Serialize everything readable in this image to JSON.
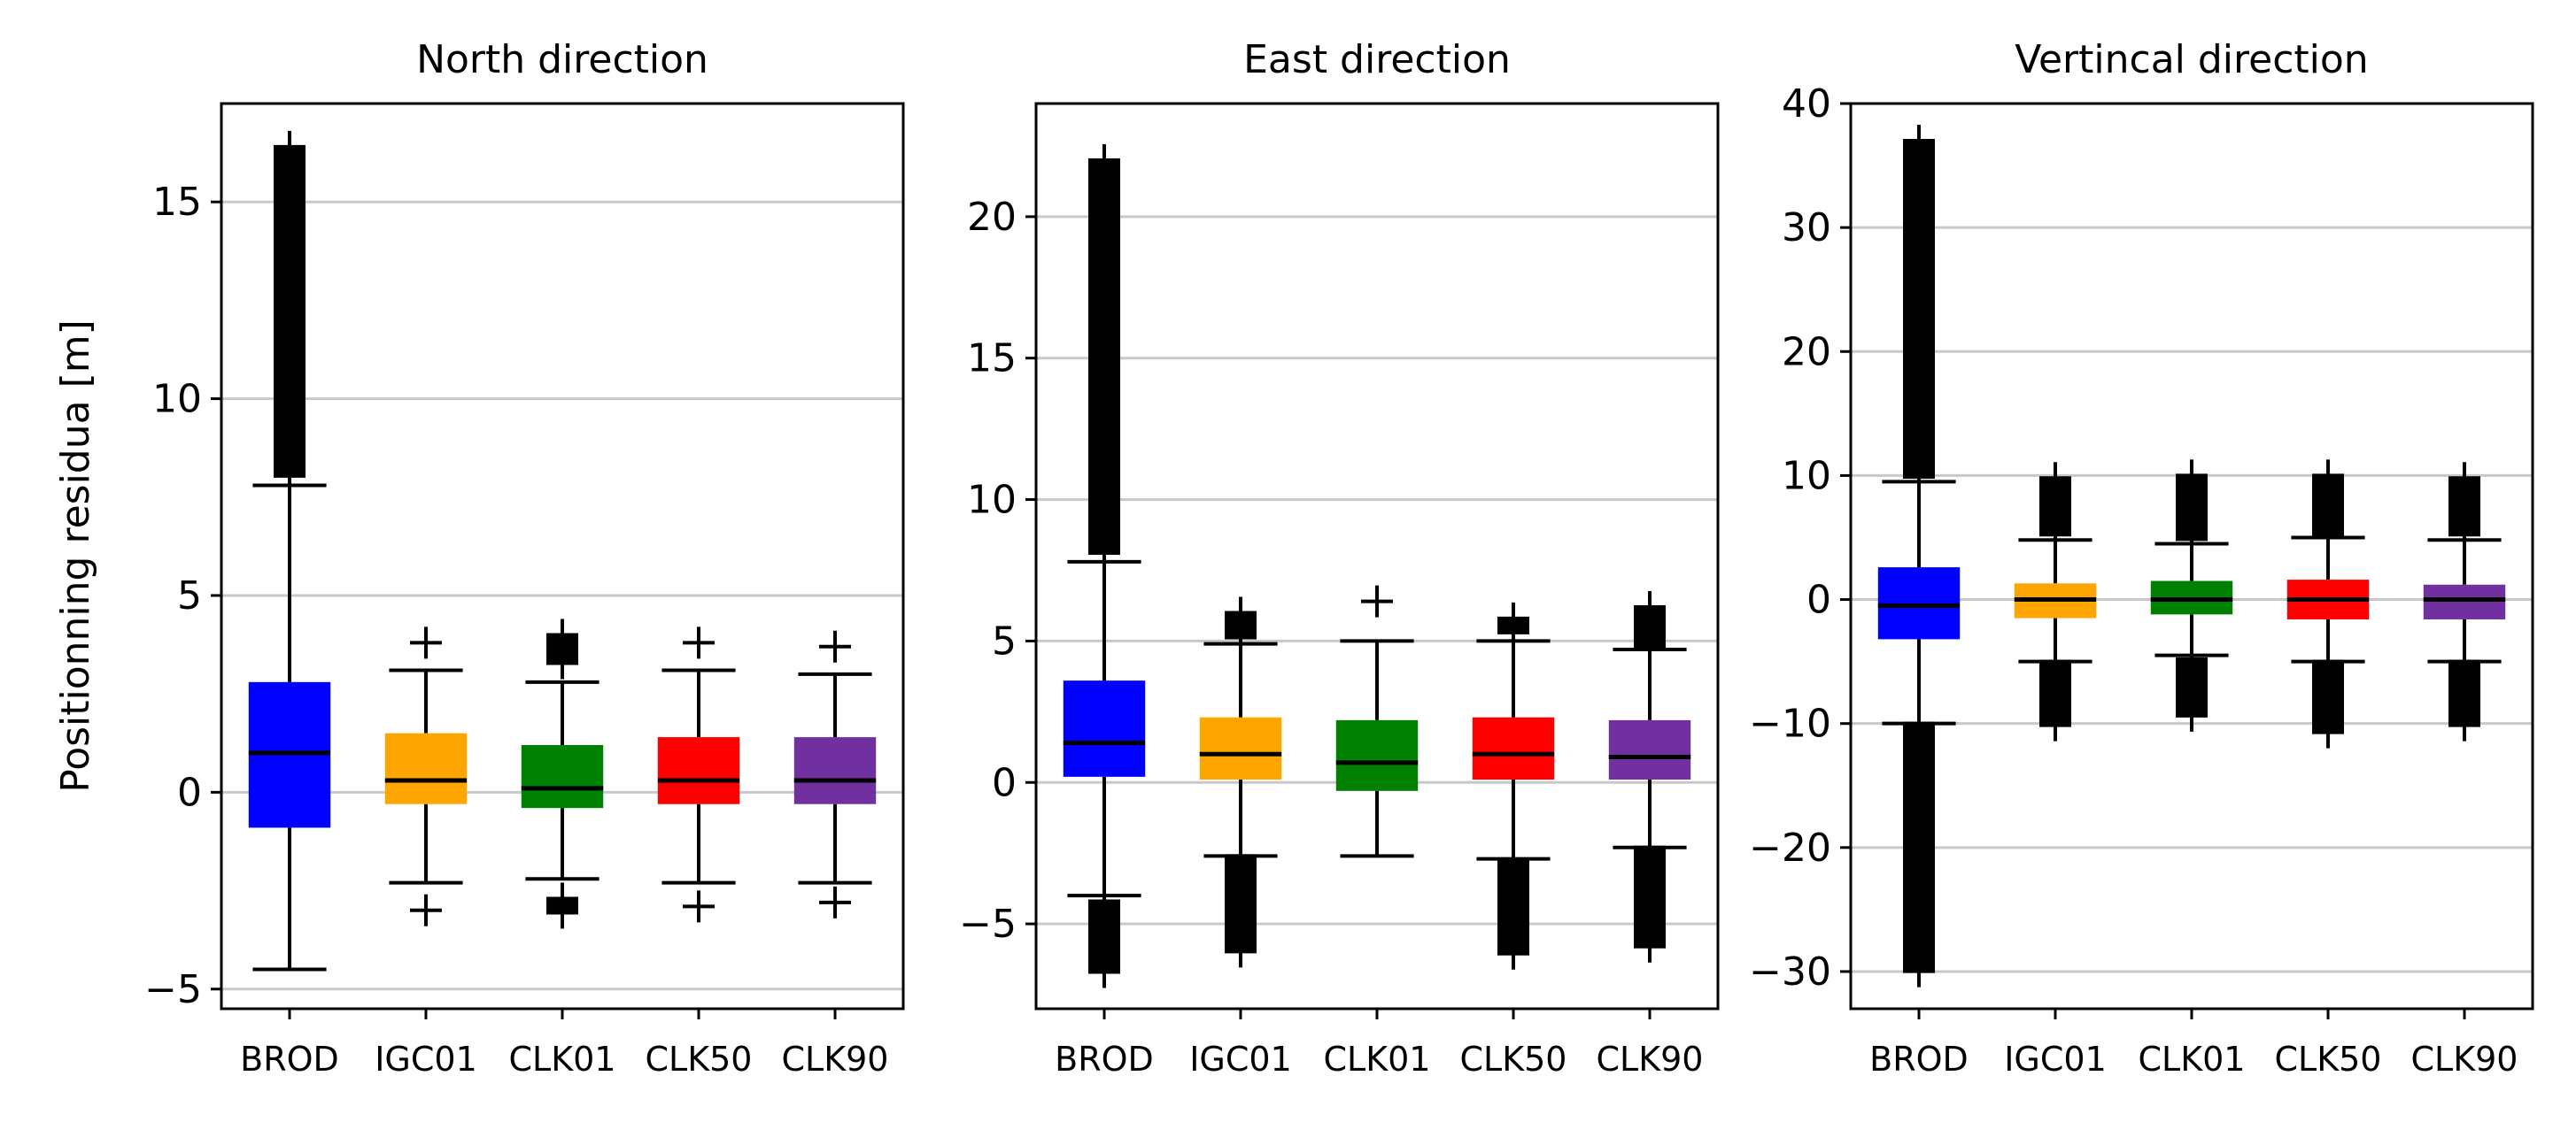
{
  "chart_data": [
    {
      "type": "box",
      "title": "North direction",
      "ylabel": "Positionning residua [m]",
      "xlabel": "",
      "ylim": [
        -5.5,
        17.5
      ],
      "yticks": [
        -5,
        0,
        5,
        10,
        15
      ],
      "grid": "horizontal",
      "categories": [
        "BROD",
        "IGC01",
        "CLK01",
        "CLK50",
        "CLK90"
      ],
      "boxes": [
        {
          "name": "BROD",
          "color": "#0000ff",
          "q1": -0.9,
          "median": 1.0,
          "q3": 2.8,
          "whisker_low": -4.5,
          "whisker_high": 7.8,
          "fliers_high": [
            8.0,
            16.4
          ],
          "fliers_low": []
        },
        {
          "name": "IGC01",
          "color": "#ffa500",
          "q1": -0.3,
          "median": 0.3,
          "q3": 1.5,
          "whisker_low": -2.3,
          "whisker_high": 3.1,
          "fliers_high": [
            3.8,
            3.8
          ],
          "fliers_low": [
            -3.0,
            -3.0
          ]
        },
        {
          "name": "CLK01",
          "color": "#008000",
          "q1": -0.4,
          "median": 0.1,
          "q3": 1.2,
          "whisker_low": -2.2,
          "whisker_high": 2.8,
          "fliers_high": [
            3.2,
            4.0
          ],
          "fliers_low": [
            -3.1,
            -2.7
          ]
        },
        {
          "name": "CLK50",
          "color": "#ff0000",
          "q1": -0.3,
          "median": 0.3,
          "q3": 1.4,
          "whisker_low": -2.3,
          "whisker_high": 3.1,
          "fliers_high": [
            3.8,
            3.8
          ],
          "fliers_low": [
            -2.9,
            -2.9
          ]
        },
        {
          "name": "CLK90",
          "color": "#7030a0",
          "q1": -0.3,
          "median": 0.3,
          "q3": 1.4,
          "whisker_low": -2.3,
          "whisker_high": 3.0,
          "fliers_high": [
            3.7,
            3.7
          ],
          "fliers_low": [
            -2.8,
            -2.8
          ]
        }
      ]
    },
    {
      "type": "box",
      "title": "East direction",
      "ylabel": "",
      "xlabel": "",
      "ylim": [
        -8,
        24
      ],
      "yticks": [
        -5,
        0,
        5,
        10,
        15,
        20
      ],
      "grid": "horizontal",
      "categories": [
        "BROD",
        "IGC01",
        "CLK01",
        "CLK50",
        "CLK90"
      ],
      "boxes": [
        {
          "name": "BROD",
          "color": "#0000ff",
          "q1": 0.2,
          "median": 1.4,
          "q3": 3.6,
          "whisker_low": -4.0,
          "whisker_high": 7.8,
          "fliers_high": [
            8.0,
            22.0
          ],
          "fliers_low": [
            -6.8,
            -4.2
          ]
        },
        {
          "name": "IGC01",
          "color": "#ffa500",
          "q1": 0.1,
          "median": 1.0,
          "q3": 2.3,
          "whisker_low": -2.6,
          "whisker_high": 4.9,
          "fliers_high": [
            5.0,
            6.0
          ],
          "fliers_low": [
            -6.0,
            -2.6
          ]
        },
        {
          "name": "CLK01",
          "color": "#008000",
          "q1": -0.3,
          "median": 0.7,
          "q3": 2.2,
          "whisker_low": -2.6,
          "whisker_high": 5.0,
          "fliers_high": [
            6.4,
            6.4
          ],
          "fliers_low": []
        },
        {
          "name": "CLK50",
          "color": "#ff0000",
          "q1": 0.1,
          "median": 1.0,
          "q3": 2.3,
          "whisker_low": -2.7,
          "whisker_high": 5.0,
          "fliers_high": [
            5.2,
            5.8
          ],
          "fliers_low": [
            -6.1,
            -2.8
          ]
        },
        {
          "name": "CLK90",
          "color": "#7030a0",
          "q1": 0.1,
          "median": 0.9,
          "q3": 2.2,
          "whisker_low": -2.3,
          "whisker_high": 4.7,
          "fliers_high": [
            4.8,
            6.2
          ],
          "fliers_low": [
            -5.9,
            -2.3
          ]
        }
      ]
    },
    {
      "type": "box",
      "title": "Vertincal direction",
      "ylabel": "",
      "xlabel": "",
      "ylim": [
        -33,
        40
      ],
      "yticks": [
        -30,
        -20,
        -10,
        0,
        10,
        20,
        30,
        40
      ],
      "grid": "horizontal",
      "categories": [
        "BROD",
        "IGC01",
        "CLK01",
        "CLK50",
        "CLK90"
      ],
      "boxes": [
        {
          "name": "BROD",
          "color": "#0000ff",
          "q1": -3.2,
          "median": -0.5,
          "q3": 2.6,
          "whisker_low": -10.0,
          "whisker_high": 9.5,
          "fliers_high": [
            9.8,
            37.0
          ],
          "fliers_low": [
            -30.0,
            -10.0
          ]
        },
        {
          "name": "IGC01",
          "color": "#ffa500",
          "q1": -1.5,
          "median": 0.0,
          "q3": 1.3,
          "whisker_low": -5.0,
          "whisker_high": 4.8,
          "fliers_high": [
            5.0,
            9.8
          ],
          "fliers_low": [
            -10.4,
            -5.0
          ]
        },
        {
          "name": "CLK01",
          "color": "#008000",
          "q1": -1.2,
          "median": 0.0,
          "q3": 1.5,
          "whisker_low": -4.5,
          "whisker_high": 4.5,
          "fliers_high": [
            4.8,
            10.0
          ],
          "fliers_low": [
            -9.5,
            -4.8
          ]
        },
        {
          "name": "CLK50",
          "color": "#ff0000",
          "q1": -1.6,
          "median": 0.0,
          "q3": 1.6,
          "whisker_low": -5.0,
          "whisker_high": 5.0,
          "fliers_high": [
            5.0,
            10.0
          ],
          "fliers_low": [
            -10.8,
            -5.0
          ]
        },
        {
          "name": "CLK90",
          "color": "#7030a0",
          "q1": -1.6,
          "median": 0.0,
          "q3": 1.2,
          "whisker_low": -5.0,
          "whisker_high": 4.8,
          "fliers_high": [
            5.0,
            9.8
          ],
          "fliers_low": [
            -10.4,
            -5.0
          ]
        }
      ]
    }
  ]
}
